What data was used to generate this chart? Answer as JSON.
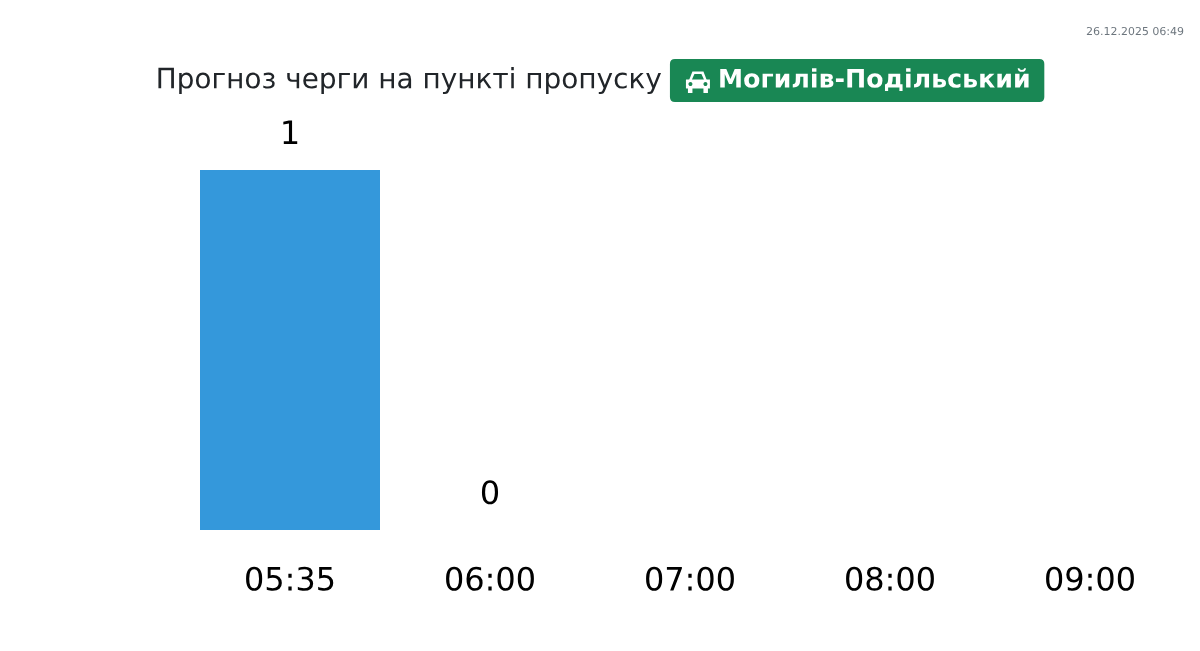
{
  "chart_data": {
    "type": "bar",
    "title": "Прогноз черги на пункті пропуску",
    "subtitle": "Могилів-Подільський",
    "annotations": [
      "26.12.2025 06:49"
    ],
    "categories": [
      "05:35",
      "06:00",
      "07:00",
      "08:00",
      "09:00"
    ],
    "values": [
      1,
      0,
      null,
      null,
      null
    ],
    "color": "#3498db",
    "data_labels": true,
    "tick_labels": "x"
  }
}
